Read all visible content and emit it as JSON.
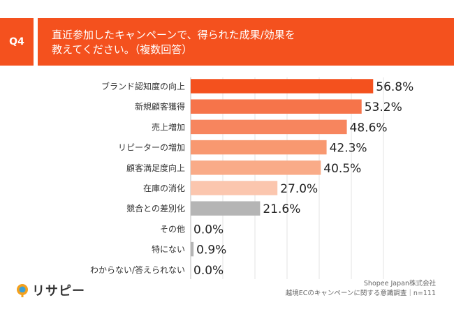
{
  "header": {
    "q_label": "Q4",
    "title_line1": "直近参加したキャンペーンで、得られた成果/効果を",
    "title_line2": "教えてください。（複数回答）"
  },
  "chart_data": {
    "type": "bar",
    "orientation": "horizontal",
    "categories": [
      "ブランド認知度の向上",
      "新規顧客獲得",
      "売上増加",
      "リピーターの増加",
      "顧客満足度向上",
      "在庫の消化",
      "競合との差別化",
      "その他",
      "特にない",
      "わからない/答えられない"
    ],
    "values": [
      56.8,
      53.2,
      48.6,
      42.3,
      40.5,
      27.0,
      21.6,
      0.0,
      0.9,
      0.0
    ],
    "value_labels": [
      "56.8%",
      "53.2%",
      "48.6%",
      "42.3%",
      "40.5%",
      "27.0%",
      "21.6%",
      "0.0%",
      "0.9%",
      "0.0%"
    ],
    "colors": [
      "#f4511e",
      "#f6744a",
      "#f7855e",
      "#f89870",
      "#f9ab88",
      "#fbc6ae",
      "#b5b5b5",
      "#b5b5b5",
      "#b5b5b5",
      "#b5b5b5"
    ],
    "xlim": [
      0,
      60
    ],
    "grid": true
  },
  "logo": {
    "text": "リサピー"
  },
  "footer": {
    "company": "Shopee Japan株式会社",
    "survey": "越境ECのキャンペーンに関する意識調査｜n=111"
  }
}
